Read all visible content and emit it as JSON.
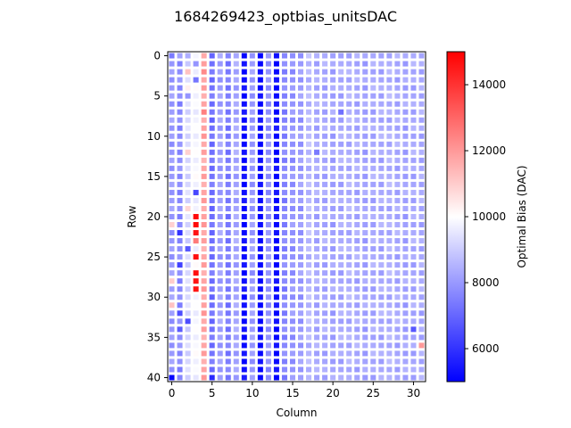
{
  "chart_data": {
    "type": "heatmap",
    "title": "1684269423_optbias_unitsDAC",
    "xlabel": "Column",
    "ylabel": "Row",
    "colorbar_label": "Optimal Bias (DAC)",
    "colormap": "bwr",
    "n_rows": 41,
    "n_cols": 32,
    "xlim": [
      -0.5,
      31.5
    ],
    "ylim": [
      40.5,
      -0.5
    ],
    "xticks": [
      0,
      5,
      10,
      15,
      20,
      25,
      30
    ],
    "yticks": [
      0,
      5,
      10,
      15,
      20,
      25,
      30,
      35,
      40
    ],
    "vmin": 5000,
    "vmax": 15000,
    "colorbar_ticks": [
      6000,
      8000,
      10000,
      12000,
      14000
    ],
    "colorbar_tick_labels": [
      "6000",
      "8000",
      "10000",
      "12000",
      "14000"
    ],
    "colors": {
      "low": "#0000ff",
      "mid": "#ffffff",
      "high": "#ff0000",
      "grid_gap": "#ffffff"
    },
    "column_typical_values": [
      8000,
      7700,
      9200,
      9800,
      11800,
      7200,
      8100,
      7400,
      8200,
      5200,
      8000,
      5100,
      7800,
      5200,
      7600,
      7900,
      8000,
      8600,
      8300,
      8300,
      8200,
      8300,
      8400,
      8300,
      8200,
      8300,
      8300,
      8400,
      8300,
      8200,
      8300,
      8300
    ],
    "distinct_cells": [
      {
        "row": 0,
        "col": 0,
        "value": 7400
      },
      {
        "row": 0,
        "col": 1,
        "value": 8200
      },
      {
        "row": 0,
        "col": 2,
        "value": 8400
      },
      {
        "row": 1,
        "col": 3,
        "value": 7900
      },
      {
        "row": 2,
        "col": 2,
        "value": 11200
      },
      {
        "row": 2,
        "col": 4,
        "value": 12300
      },
      {
        "row": 3,
        "col": 3,
        "value": 7300
      },
      {
        "row": 4,
        "col": 2,
        "value": 10300
      },
      {
        "row": 5,
        "col": 2,
        "value": 7900
      },
      {
        "row": 7,
        "col": 4,
        "value": 12500
      },
      {
        "row": 12,
        "col": 2,
        "value": 10900
      },
      {
        "row": 12,
        "col": 18,
        "value": 7400
      },
      {
        "row": 7,
        "col": 21,
        "value": 7200
      },
      {
        "row": 17,
        "col": 3,
        "value": 6400
      },
      {
        "row": 19,
        "col": 2,
        "value": 10800
      },
      {
        "row": 20,
        "col": 3,
        "value": 14800
      },
      {
        "row": 21,
        "col": 0,
        "value": 10900
      },
      {
        "row": 21,
        "col": 3,
        "value": 14800
      },
      {
        "row": 22,
        "col": 1,
        "value": 6000
      },
      {
        "row": 22,
        "col": 3,
        "value": 14600
      },
      {
        "row": 23,
        "col": 3,
        "value": 12600
      },
      {
        "row": 24,
        "col": 2,
        "value": 6700
      },
      {
        "row": 25,
        "col": 3,
        "value": 14700
      },
      {
        "row": 26,
        "col": 1,
        "value": 6300
      },
      {
        "row": 27,
        "col": 3,
        "value": 14700
      },
      {
        "row": 28,
        "col": 0,
        "value": 11000
      },
      {
        "row": 28,
        "col": 3,
        "value": 14600
      },
      {
        "row": 29,
        "col": 3,
        "value": 14600
      },
      {
        "row": 31,
        "col": 0,
        "value": 11200
      },
      {
        "row": 32,
        "col": 1,
        "value": 6500
      },
      {
        "row": 33,
        "col": 2,
        "value": 6500
      },
      {
        "row": 34,
        "col": 1,
        "value": 6800
      },
      {
        "row": 34,
        "col": 30,
        "value": 6700
      },
      {
        "row": 36,
        "col": 31,
        "value": 12000
      },
      {
        "row": 40,
        "col": 0,
        "value": 5100
      },
      {
        "row": 40,
        "col": 5,
        "value": 5800
      }
    ]
  }
}
